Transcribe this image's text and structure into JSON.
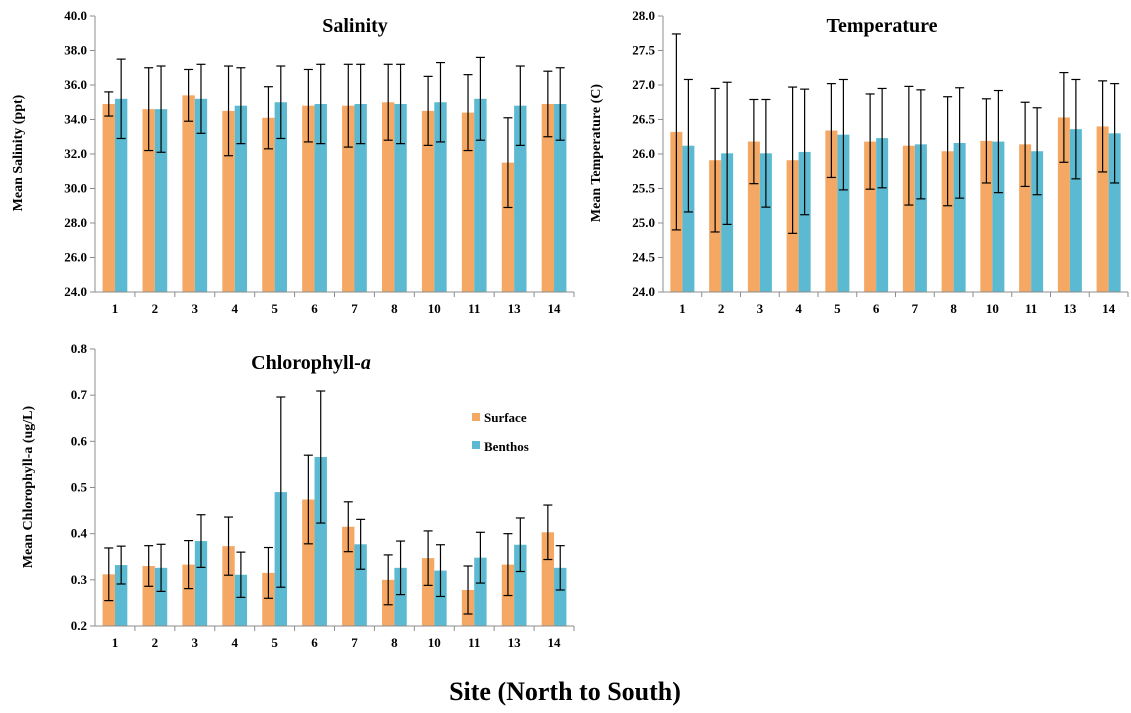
{
  "figure": {
    "x_title": "Site (North to South)"
  },
  "colors": {
    "surface": "#F5A864",
    "benthos": "#5BBAD1",
    "axis": "#8C8C8C"
  },
  "chart_data": [
    {
      "type": "bar",
      "title": "Salinity",
      "title_italic": "",
      "ylabel": "Mean Salinity (ppt)",
      "xlabel": "",
      "categories": [
        "1",
        "2",
        "3",
        "4",
        "5",
        "6",
        "7",
        "8",
        "10",
        "11",
        "13",
        "14"
      ],
      "ylim": [
        24.0,
        40.0
      ],
      "yticks": [
        "24.0",
        "26.0",
        "28.0",
        "30.0",
        "32.0",
        "34.0",
        "36.0",
        "38.0",
        "40.0"
      ],
      "series": [
        {
          "key": "surface",
          "values": [
            34.9,
            34.6,
            35.4,
            34.5,
            34.1,
            34.8,
            34.8,
            35.0,
            34.5,
            34.4,
            31.5,
            34.9
          ],
          "errors": [
            0.7,
            2.4,
            1.5,
            2.6,
            1.8,
            2.1,
            2.4,
            2.2,
            2.0,
            2.2,
            2.6,
            1.9
          ]
        },
        {
          "key": "benthos",
          "values": [
            35.2,
            34.6,
            35.2,
            34.8,
            35.0,
            34.9,
            34.9,
            34.9,
            35.0,
            35.2,
            34.8,
            34.9
          ],
          "errors": [
            2.3,
            2.5,
            2.0,
            2.2,
            2.1,
            2.3,
            2.3,
            2.3,
            2.3,
            2.4,
            2.3,
            2.1
          ]
        }
      ]
    },
    {
      "type": "bar",
      "title": "Temperature",
      "title_italic": "",
      "ylabel": "Mean Temperature (C)",
      "xlabel": "",
      "categories": [
        "1",
        "2",
        "3",
        "4",
        "5",
        "6",
        "7",
        "8",
        "10",
        "11",
        "13",
        "14"
      ],
      "ylim": [
        24.0,
        28.0
      ],
      "yticks": [
        "24.0",
        "24.5",
        "25.0",
        "25.5",
        "26.0",
        "26.5",
        "27.0",
        "27.5",
        "28.0"
      ],
      "series": [
        {
          "key": "surface",
          "values": [
            26.32,
            25.91,
            26.18,
            25.91,
            26.34,
            26.18,
            26.12,
            26.04,
            26.19,
            26.14,
            26.53,
            26.4
          ],
          "errors": [
            1.42,
            1.04,
            0.61,
            1.06,
            0.68,
            0.69,
            0.86,
            0.79,
            0.61,
            0.61,
            0.65,
            0.66
          ]
        },
        {
          "key": "benthos",
          "values": [
            26.12,
            26.01,
            26.01,
            26.03,
            26.28,
            26.23,
            26.14,
            26.16,
            26.18,
            26.04,
            26.36,
            26.3
          ],
          "errors": [
            0.96,
            1.03,
            0.78,
            0.91,
            0.8,
            0.72,
            0.79,
            0.8,
            0.74,
            0.63,
            0.72,
            0.72
          ]
        }
      ]
    },
    {
      "type": "bar",
      "title": "Chlorophyll-",
      "title_italic": "a",
      "ylabel": "Mean Chlorophyll-a (ug/L)",
      "xlabel": "",
      "categories": [
        "1",
        "2",
        "3",
        "4",
        "5",
        "6",
        "7",
        "8",
        "10",
        "11",
        "13",
        "14"
      ],
      "ylim": [
        0.2,
        0.8
      ],
      "yticks": [
        "0.2",
        "0.3",
        "0.4",
        "0.5",
        "0.6",
        "0.7",
        "0.8"
      ],
      "legend": {
        "position": "right",
        "entries": [
          "Surface",
          "Benthos"
        ]
      },
      "series": [
        {
          "key": "surface",
          "values": [
            0.312,
            0.33,
            0.333,
            0.373,
            0.315,
            0.474,
            0.415,
            0.3,
            0.347,
            0.278,
            0.333,
            0.403
          ],
          "errors": [
            0.057,
            0.044,
            0.052,
            0.063,
            0.055,
            0.096,
            0.054,
            0.054,
            0.059,
            0.052,
            0.067,
            0.059
          ]
        },
        {
          "key": "benthos",
          "values": [
            0.332,
            0.326,
            0.384,
            0.311,
            0.49,
            0.566,
            0.377,
            0.326,
            0.32,
            0.348,
            0.376,
            0.326
          ],
          "errors": [
            0.041,
            0.051,
            0.057,
            0.049,
            0.206,
            0.143,
            0.054,
            0.058,
            0.056,
            0.055,
            0.058,
            0.048
          ]
        }
      ]
    }
  ]
}
